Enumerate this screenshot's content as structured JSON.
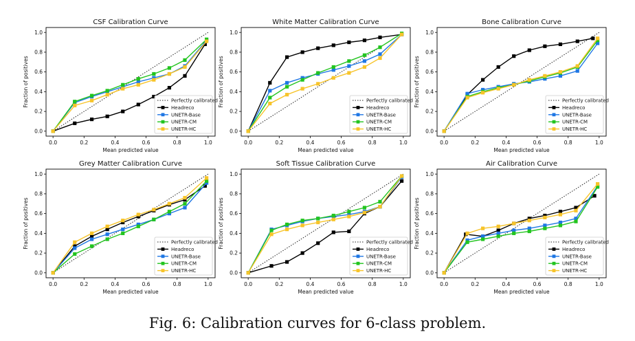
{
  "caption": "Fig. 6: Calibration curves for 6-class problem.",
  "series_styles": [
    {
      "name": "Perfectly calibrated",
      "color": "#222222",
      "dash": "dotted"
    },
    {
      "name": "Headreco",
      "color": "#000000"
    },
    {
      "name": "UNETR-Base",
      "color": "#1f77e4"
    },
    {
      "name": "UNETR-CM",
      "color": "#22c41f"
    },
    {
      "name": "UNETR-HC",
      "color": "#f7c42a"
    }
  ],
  "chart_data": [
    {
      "type": "line",
      "title": "CSF Calibration Curve",
      "xlabel": "Mean predicted value",
      "ylabel": "Fraction of positives",
      "xlim": [
        0,
        1
      ],
      "ylim": [
        0,
        1
      ],
      "xticks": [
        "0.0",
        "0.2",
        "0.4",
        "0.6",
        "0.8",
        "1.0"
      ],
      "yticks": [
        "0.0",
        "0.2",
        "0.4",
        "0.6",
        "0.8",
        "1.0"
      ],
      "legend": "lower-right",
      "series": [
        {
          "name": "Headreco",
          "x": [
            0.0,
            0.14,
            0.25,
            0.35,
            0.45,
            0.55,
            0.65,
            0.75,
            0.85,
            0.98
          ],
          "y": [
            0.0,
            0.08,
            0.12,
            0.15,
            0.2,
            0.27,
            0.35,
            0.44,
            0.56,
            0.88
          ]
        },
        {
          "name": "UNETR-Base",
          "x": [
            0.0,
            0.14,
            0.25,
            0.35,
            0.45,
            0.55,
            0.65,
            0.75,
            0.85,
            0.99
          ],
          "y": [
            0.0,
            0.29,
            0.35,
            0.4,
            0.45,
            0.5,
            0.54,
            0.58,
            0.66,
            0.92
          ]
        },
        {
          "name": "UNETR-CM",
          "x": [
            0.0,
            0.14,
            0.25,
            0.35,
            0.45,
            0.55,
            0.65,
            0.75,
            0.85,
            0.99
          ],
          "y": [
            0.0,
            0.3,
            0.36,
            0.41,
            0.47,
            0.53,
            0.58,
            0.64,
            0.72,
            0.93
          ]
        },
        {
          "name": "UNETR-HC",
          "x": [
            0.0,
            0.14,
            0.25,
            0.35,
            0.45,
            0.55,
            0.65,
            0.75,
            0.85,
            0.99
          ],
          "y": [
            0.0,
            0.26,
            0.31,
            0.37,
            0.43,
            0.47,
            0.52,
            0.58,
            0.65,
            0.91
          ]
        }
      ]
    },
    {
      "type": "line",
      "title": "White Matter Calibration Curve",
      "xlabel": "Mean predicted value",
      "ylabel": "Fraction of positives",
      "xlim": [
        0,
        1
      ],
      "ylim": [
        0,
        1
      ],
      "xticks": [
        "0.0",
        "0.2",
        "0.4",
        "0.6",
        "0.8",
        "1.0"
      ],
      "yticks": [
        "0.0",
        "0.2",
        "0.4",
        "0.6",
        "0.8",
        "1.0"
      ],
      "legend": "lower-right",
      "series": [
        {
          "name": "Headreco",
          "x": [
            0.0,
            0.14,
            0.25,
            0.35,
            0.45,
            0.55,
            0.65,
            0.75,
            0.85,
            0.99
          ],
          "y": [
            0.0,
            0.49,
            0.75,
            0.8,
            0.84,
            0.87,
            0.9,
            0.92,
            0.95,
            0.98
          ]
        },
        {
          "name": "UNETR-Base",
          "x": [
            0.0,
            0.14,
            0.25,
            0.35,
            0.45,
            0.55,
            0.65,
            0.75,
            0.85,
            0.99
          ],
          "y": [
            0.0,
            0.41,
            0.49,
            0.54,
            0.58,
            0.62,
            0.66,
            0.71,
            0.78,
            0.98
          ]
        },
        {
          "name": "UNETR-CM",
          "x": [
            0.0,
            0.14,
            0.25,
            0.35,
            0.45,
            0.55,
            0.65,
            0.75,
            0.85,
            0.99
          ],
          "y": [
            0.0,
            0.34,
            0.45,
            0.52,
            0.59,
            0.65,
            0.71,
            0.77,
            0.85,
            0.99
          ]
        },
        {
          "name": "UNETR-HC",
          "x": [
            0.0,
            0.14,
            0.25,
            0.35,
            0.45,
            0.55,
            0.65,
            0.75,
            0.85,
            0.99
          ],
          "y": [
            0.0,
            0.28,
            0.37,
            0.43,
            0.48,
            0.54,
            0.59,
            0.65,
            0.74,
            0.98
          ]
        }
      ]
    },
    {
      "type": "line",
      "title": "Bone Calibration Curve",
      "xlabel": "Mean predicted value",
      "ylabel": "Fraction of positives",
      "xlim": [
        0,
        1
      ],
      "ylim": [
        0,
        1
      ],
      "xticks": [
        "0.0",
        "0.2",
        "0.4",
        "0.6",
        "0.8",
        "1.0"
      ],
      "yticks": [
        "0.0",
        "0.2",
        "0.4",
        "0.6",
        "0.8",
        "1.0"
      ],
      "legend": "lower-right",
      "series": [
        {
          "name": "Headreco",
          "x": [
            0.0,
            0.15,
            0.25,
            0.35,
            0.45,
            0.55,
            0.65,
            0.75,
            0.86,
            0.96
          ],
          "y": [
            0.0,
            0.37,
            0.52,
            0.65,
            0.76,
            0.82,
            0.86,
            0.88,
            0.91,
            0.94
          ]
        },
        {
          "name": "UNETR-Base",
          "x": [
            0.0,
            0.15,
            0.25,
            0.35,
            0.45,
            0.55,
            0.65,
            0.75,
            0.86,
            0.99
          ],
          "y": [
            0.0,
            0.38,
            0.42,
            0.45,
            0.48,
            0.5,
            0.53,
            0.56,
            0.61,
            0.89
          ]
        },
        {
          "name": "UNETR-CM",
          "x": [
            0.0,
            0.15,
            0.25,
            0.35,
            0.45,
            0.55,
            0.65,
            0.75,
            0.86,
            0.99
          ],
          "y": [
            0.0,
            0.35,
            0.4,
            0.44,
            0.47,
            0.51,
            0.55,
            0.59,
            0.65,
            0.92
          ]
        },
        {
          "name": "UNETR-HC",
          "x": [
            0.0,
            0.15,
            0.25,
            0.35,
            0.45,
            0.55,
            0.65,
            0.75,
            0.86,
            0.99
          ],
          "y": [
            0.0,
            0.34,
            0.39,
            0.43,
            0.47,
            0.52,
            0.56,
            0.6,
            0.66,
            0.94
          ]
        }
      ]
    },
    {
      "type": "line",
      "title": "Grey Matter Calibration Curve",
      "xlabel": "Mean predicted value",
      "ylabel": "Fraction of positives",
      "xlim": [
        0,
        1
      ],
      "ylim": [
        0,
        1
      ],
      "xticks": [
        "0.0",
        "0.2",
        "0.4",
        "0.6",
        "0.8",
        "1.0"
      ],
      "yticks": [
        "0.0",
        "0.2",
        "0.4",
        "0.6",
        "0.8",
        "1.0"
      ],
      "legend": "lower-right",
      "series": [
        {
          "name": "Headreco",
          "x": [
            0.0,
            0.14,
            0.25,
            0.35,
            0.45,
            0.55,
            0.65,
            0.75,
            0.85,
            0.98
          ],
          "y": [
            0.0,
            0.27,
            0.37,
            0.44,
            0.51,
            0.57,
            0.63,
            0.69,
            0.74,
            0.88
          ]
        },
        {
          "name": "UNETR-Base",
          "x": [
            0.0,
            0.14,
            0.25,
            0.35,
            0.45,
            0.55,
            0.65,
            0.75,
            0.85,
            0.99
          ],
          "y": [
            0.0,
            0.25,
            0.34,
            0.39,
            0.44,
            0.49,
            0.54,
            0.6,
            0.66,
            0.91
          ]
        },
        {
          "name": "UNETR-CM",
          "x": [
            0.0,
            0.14,
            0.25,
            0.35,
            0.45,
            0.55,
            0.65,
            0.75,
            0.85,
            0.99
          ],
          "y": [
            0.0,
            0.19,
            0.27,
            0.34,
            0.4,
            0.47,
            0.54,
            0.62,
            0.7,
            0.93
          ]
        },
        {
          "name": "UNETR-HC",
          "x": [
            0.0,
            0.14,
            0.25,
            0.35,
            0.45,
            0.55,
            0.65,
            0.75,
            0.85,
            0.99
          ],
          "y": [
            0.0,
            0.31,
            0.4,
            0.47,
            0.53,
            0.59,
            0.64,
            0.7,
            0.76,
            0.96
          ]
        }
      ]
    },
    {
      "type": "line",
      "title": "Soft Tissue Calibration Curve",
      "xlabel": "Mean predicted value",
      "ylabel": "Fraction of positives",
      "xlim": [
        0,
        1
      ],
      "ylim": [
        0,
        1
      ],
      "xticks": [
        "0.0",
        "0.2",
        "0.4",
        "0.6",
        "0.8",
        "1.0"
      ],
      "yticks": [
        "0.0",
        "0.2",
        "0.4",
        "0.6",
        "0.8",
        "1.0"
      ],
      "legend": "lower-right",
      "series": [
        {
          "name": "Headreco",
          "x": [
            0.0,
            0.15,
            0.25,
            0.35,
            0.45,
            0.55,
            0.65,
            0.75,
            0.85,
            0.99
          ],
          "y": [
            0.0,
            0.07,
            0.11,
            0.2,
            0.3,
            0.41,
            0.42,
            0.6,
            0.67,
            0.93
          ]
        },
        {
          "name": "UNETR-Base",
          "x": [
            0.0,
            0.15,
            0.25,
            0.35,
            0.45,
            0.55,
            0.65,
            0.75,
            0.85,
            0.99
          ],
          "y": [
            0.0,
            0.44,
            0.48,
            0.52,
            0.55,
            0.57,
            0.59,
            0.62,
            0.67,
            0.97
          ]
        },
        {
          "name": "UNETR-CM",
          "x": [
            0.0,
            0.15,
            0.25,
            0.35,
            0.45,
            0.55,
            0.65,
            0.75,
            0.85,
            0.99
          ],
          "y": [
            0.0,
            0.43,
            0.49,
            0.53,
            0.55,
            0.58,
            0.62,
            0.66,
            0.72,
            0.98
          ]
        },
        {
          "name": "UNETR-HC",
          "x": [
            0.0,
            0.15,
            0.25,
            0.35,
            0.45,
            0.55,
            0.65,
            0.75,
            0.85,
            0.99
          ],
          "y": [
            0.0,
            0.39,
            0.44,
            0.48,
            0.51,
            0.54,
            0.57,
            0.61,
            0.67,
            0.98
          ]
        }
      ]
    },
    {
      "type": "line",
      "title": "Air Calibration Curve",
      "xlabel": "Mean predicted value",
      "ylabel": "Fraction of positives",
      "xlim": [
        0,
        1
      ],
      "ylim": [
        0,
        1
      ],
      "xticks": [
        "0.0",
        "0.2",
        "0.4",
        "0.6",
        "0.8",
        "1.0"
      ],
      "yticks": [
        "0.0",
        "0.2",
        "0.4",
        "0.6",
        "0.8",
        "1.0"
      ],
      "legend": "lower-right",
      "series": [
        {
          "name": "Headreco",
          "x": [
            0.0,
            0.14,
            0.25,
            0.35,
            0.45,
            0.55,
            0.65,
            0.75,
            0.85,
            0.97
          ],
          "y": [
            0.0,
            0.39,
            0.37,
            0.43,
            0.5,
            0.55,
            0.58,
            0.62,
            0.66,
            0.78
          ]
        },
        {
          "name": "UNETR-Base",
          "x": [
            0.0,
            0.15,
            0.25,
            0.35,
            0.45,
            0.55,
            0.65,
            0.75,
            0.85,
            0.99
          ],
          "y": [
            0.0,
            0.33,
            0.37,
            0.4,
            0.43,
            0.45,
            0.48,
            0.51,
            0.55,
            0.88
          ]
        },
        {
          "name": "UNETR-CM",
          "x": [
            0.0,
            0.15,
            0.25,
            0.35,
            0.45,
            0.55,
            0.65,
            0.75,
            0.85,
            0.99
          ],
          "y": [
            0.0,
            0.31,
            0.34,
            0.37,
            0.4,
            0.42,
            0.45,
            0.48,
            0.52,
            0.87
          ]
        },
        {
          "name": "UNETR-HC",
          "x": [
            0.0,
            0.15,
            0.25,
            0.35,
            0.45,
            0.55,
            0.65,
            0.75,
            0.85,
            0.99
          ],
          "y": [
            0.0,
            0.4,
            0.45,
            0.47,
            0.5,
            0.53,
            0.56,
            0.59,
            0.63,
            0.9
          ]
        }
      ]
    }
  ]
}
